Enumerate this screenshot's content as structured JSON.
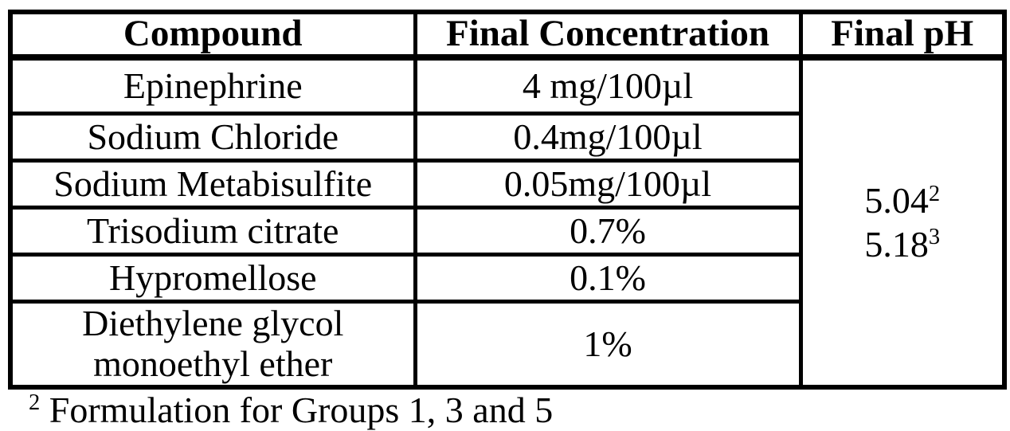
{
  "table": {
    "headers": [
      "Compound",
      "Final Concentration",
      "Final pH"
    ],
    "rows": [
      {
        "compound": "Epinephrine",
        "concentration": "4 mg/100µl"
      },
      {
        "compound": "Sodium Chloride",
        "concentration": "0.4mg/100µl"
      },
      {
        "compound": "Sodium Metabisulfite",
        "concentration": "0.05mg/100µl"
      },
      {
        "compound": "Trisodium citrate",
        "concentration": "0.7%"
      },
      {
        "compound": "Hypromellose",
        "concentration": "0.1%"
      },
      {
        "compound": "Diethylene glycol monoethyl ether",
        "concentration": "1%"
      }
    ],
    "final_ph": {
      "values": [
        {
          "base": "5.04",
          "superscript": "2"
        },
        {
          "base": "5.18",
          "superscript": "3"
        }
      ]
    }
  },
  "footnote": {
    "superscript": "2",
    "text": " Formulation for Groups 1, 3 and 5"
  },
  "colors": {
    "text": "#000000",
    "border": "#000000",
    "background": "#ffffff"
  }
}
